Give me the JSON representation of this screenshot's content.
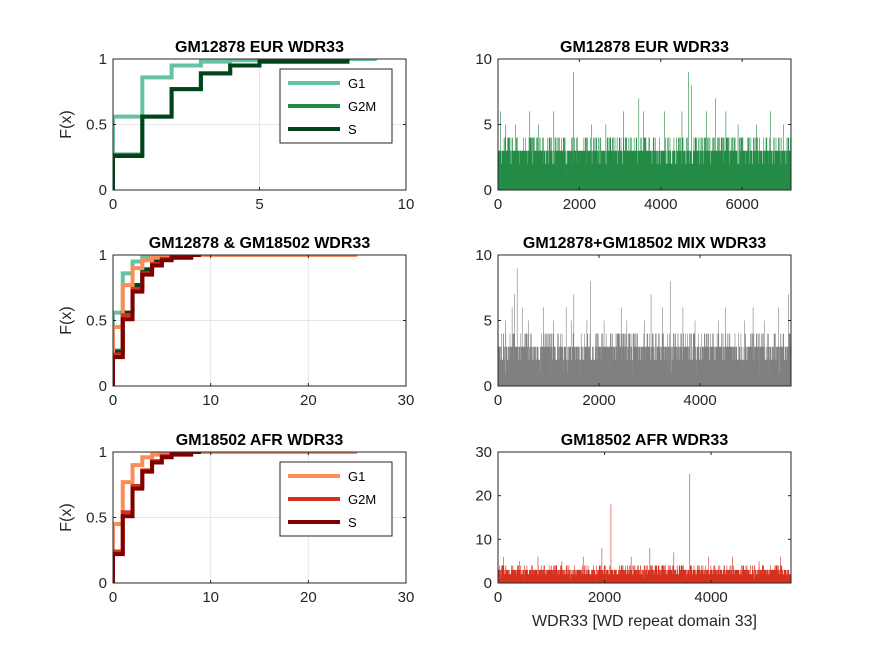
{
  "chart_data": [
    {
      "type": "line",
      "subtype": "ecdf-step",
      "title": "GM12878 EUR WDR33",
      "xlabel": "",
      "ylabel": "F(x)",
      "xlim": [
        0,
        10
      ],
      "ylim": [
        0,
        1
      ],
      "xticks": [
        0,
        5,
        10
      ],
      "yticks": [
        0,
        0.5,
        1
      ],
      "grid": true,
      "legend": "top-right",
      "series": [
        {
          "name": "G1",
          "color": "#66c2a4",
          "x": [
            0,
            1,
            2,
            3,
            4,
            6,
            9
          ],
          "y": [
            0.56,
            0.86,
            0.95,
            0.98,
            0.99,
            1.0,
            1.0
          ]
        },
        {
          "name": "G2M",
          "color": "#238b45",
          "x": [
            0,
            1,
            2,
            3,
            4,
            5,
            8
          ],
          "y": [
            0.27,
            0.56,
            0.77,
            0.89,
            0.95,
            0.98,
            1.0
          ]
        },
        {
          "name": "S",
          "color": "#00441b",
          "x": [
            0,
            1,
            2,
            3,
            4,
            5,
            8
          ],
          "y": [
            0.26,
            0.56,
            0.77,
            0.89,
            0.95,
            0.98,
            1.0
          ]
        }
      ]
    },
    {
      "type": "bar",
      "subtype": "dense-spikes",
      "title": "GM12878 EUR WDR33",
      "xlim": [
        0,
        7200
      ],
      "ylim": [
        0,
        10
      ],
      "xticks": [
        0,
        2000,
        4000,
        6000
      ],
      "yticks": [
        0,
        5,
        10
      ],
      "color": "#238b45",
      "n": 7200,
      "baseline_max": 3,
      "peaks": [
        [
          60,
          6
        ],
        [
          180,
          5
        ],
        [
          430,
          5
        ],
        [
          780,
          6
        ],
        [
          990,
          5
        ],
        [
          1370,
          6
        ],
        [
          1860,
          9
        ],
        [
          2300,
          5
        ],
        [
          2650,
          5
        ],
        [
          3080,
          6
        ],
        [
          3460,
          7
        ],
        [
          3580,
          6
        ],
        [
          4090,
          6
        ],
        [
          4520,
          6
        ],
        [
          4680,
          9
        ],
        [
          4750,
          8
        ],
        [
          5120,
          6
        ],
        [
          5340,
          7
        ],
        [
          5600,
          6
        ],
        [
          5900,
          5
        ],
        [
          6350,
          5
        ],
        [
          6700,
          6
        ],
        [
          7020,
          5
        ]
      ]
    },
    {
      "type": "line",
      "subtype": "ecdf-step",
      "title": "GM12878 & GM18502 WDR33",
      "xlabel": "",
      "ylabel": "F(x)",
      "xlim": [
        0,
        30
      ],
      "ylim": [
        0,
        1
      ],
      "xticks": [
        0,
        10,
        20,
        30
      ],
      "yticks": [
        0,
        0.5,
        1
      ],
      "grid": true,
      "series": [
        {
          "color": "#66c2a4",
          "x": [
            0,
            1,
            2,
            3,
            4,
            6,
            9
          ],
          "y": [
            0.56,
            0.86,
            0.95,
            0.98,
            0.99,
            1.0,
            1.0
          ]
        },
        {
          "color": "#238b45",
          "x": [
            0,
            1,
            2,
            3,
            4,
            5,
            8
          ],
          "y": [
            0.27,
            0.56,
            0.77,
            0.89,
            0.95,
            0.98,
            1.0
          ]
        },
        {
          "color": "#00441b",
          "x": [
            0,
            1,
            2,
            3,
            4,
            5,
            8
          ],
          "y": [
            0.26,
            0.56,
            0.77,
            0.89,
            0.95,
            0.98,
            1.0
          ]
        },
        {
          "color": "#fc8d59",
          "x": [
            0,
            1,
            2,
            3,
            4,
            5,
            6,
            8,
            25
          ],
          "y": [
            0.45,
            0.77,
            0.9,
            0.96,
            0.98,
            0.99,
            0.995,
            1.0,
            1.0
          ]
        },
        {
          "color": "#d7301f",
          "x": [
            0,
            1,
            2,
            3,
            4,
            5,
            6,
            8,
            9
          ],
          "y": [
            0.24,
            0.54,
            0.74,
            0.86,
            0.93,
            0.97,
            0.99,
            1.0,
            1.0
          ]
        },
        {
          "color": "#7f0000",
          "x": [
            0,
            1,
            2,
            3,
            4,
            5,
            6,
            8,
            9
          ],
          "y": [
            0.22,
            0.51,
            0.72,
            0.85,
            0.92,
            0.96,
            0.98,
            1.0,
            1.0
          ]
        }
      ]
    },
    {
      "type": "bar",
      "subtype": "dense-spikes",
      "title": "GM12878+GM18502 MIX WDR33",
      "xlim": [
        0,
        5800
      ],
      "ylim": [
        0,
        10
      ],
      "xticks": [
        0,
        2000,
        4000
      ],
      "yticks": [
        0,
        5,
        10
      ],
      "color": "#808080",
      "n": 5800,
      "baseline_max": 3,
      "peaks": [
        [
          150,
          5
        ],
        [
          280,
          6
        ],
        [
          330,
          7
        ],
        [
          380,
          9
        ],
        [
          480,
          6
        ],
        [
          600,
          5
        ],
        [
          900,
          6
        ],
        [
          1100,
          5
        ],
        [
          1350,
          6
        ],
        [
          1450,
          5
        ],
        [
          1500,
          7
        ],
        [
          1760,
          5
        ],
        [
          1830,
          8
        ],
        [
          2100,
          5
        ],
        [
          2440,
          6
        ],
        [
          2550,
          5
        ],
        [
          2900,
          5
        ],
        [
          3030,
          7
        ],
        [
          3260,
          6
        ],
        [
          3410,
          8
        ],
        [
          3660,
          6
        ],
        [
          3900,
          5
        ],
        [
          4360,
          5
        ],
        [
          4500,
          6
        ],
        [
          4880,
          5
        ],
        [
          5050,
          6
        ],
        [
          5280,
          5
        ],
        [
          5550,
          6
        ],
        [
          5750,
          7
        ]
      ]
    },
    {
      "type": "line",
      "subtype": "ecdf-step",
      "title": "GM18502 AFR WDR33",
      "xlabel": "",
      "ylabel": "F(x)",
      "xlim": [
        0,
        30
      ],
      "ylim": [
        0,
        1
      ],
      "xticks": [
        0,
        10,
        20,
        30
      ],
      "yticks": [
        0,
        0.5,
        1
      ],
      "grid": true,
      "legend": "top-right",
      "series": [
        {
          "name": "G1",
          "color": "#fc8d59",
          "x": [
            0,
            1,
            2,
            3,
            4,
            5,
            6,
            8,
            25
          ],
          "y": [
            0.45,
            0.77,
            0.9,
            0.96,
            0.98,
            0.99,
            0.995,
            1.0,
            1.0
          ]
        },
        {
          "name": "G2M",
          "color": "#d7301f",
          "x": [
            0,
            1,
            2,
            3,
            4,
            5,
            6,
            8,
            9
          ],
          "y": [
            0.24,
            0.54,
            0.74,
            0.86,
            0.93,
            0.97,
            0.99,
            1.0,
            1.0
          ]
        },
        {
          "name": "S",
          "color": "#7f0000",
          "x": [
            0,
            1,
            2,
            3,
            4,
            5,
            6,
            8,
            9
          ],
          "y": [
            0.22,
            0.51,
            0.72,
            0.85,
            0.92,
            0.96,
            0.98,
            1.0,
            1.0
          ]
        }
      ]
    },
    {
      "type": "bar",
      "subtype": "dense-spikes",
      "title": "GM18502 AFR WDR33",
      "xlabel": "WDR33 [WD repeat domain 33]",
      "xlim": [
        0,
        5500
      ],
      "ylim": [
        0,
        30
      ],
      "xticks": [
        0,
        2000,
        4000
      ],
      "yticks": [
        0,
        10,
        20,
        30
      ],
      "color": "#d7301f",
      "n": 5500,
      "baseline_max": 4,
      "peaks": [
        [
          100,
          6
        ],
        [
          400,
          5
        ],
        [
          750,
          6
        ],
        [
          1200,
          5
        ],
        [
          1600,
          6
        ],
        [
          1950,
          8
        ],
        [
          2120,
          18
        ],
        [
          2500,
          6
        ],
        [
          2850,
          8
        ],
        [
          3300,
          7
        ],
        [
          3600,
          25
        ],
        [
          3950,
          6
        ],
        [
          4400,
          6
        ],
        [
          4900,
          5
        ],
        [
          5300,
          6
        ]
      ]
    }
  ]
}
